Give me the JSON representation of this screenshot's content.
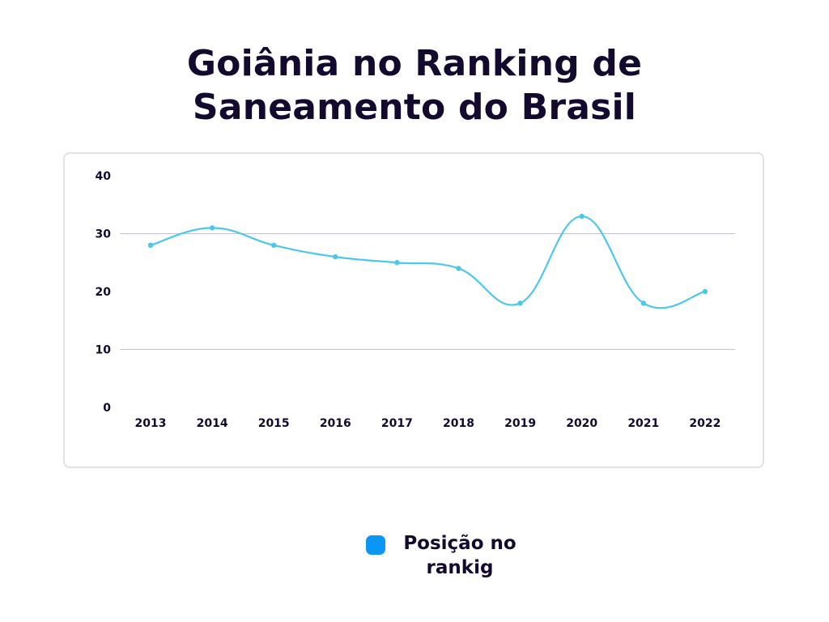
{
  "chart_data": {
    "type": "line",
    "title": "Goiânia no Ranking de Saneamento do Brasil",
    "title_lines": [
      "Goiânia no Ranking de",
      "Saneamento do Brasil"
    ],
    "xlabel": "",
    "ylabel": "",
    "categories": [
      "2013",
      "2014",
      "2015",
      "2016",
      "2017",
      "2018",
      "2019",
      "2020",
      "2021",
      "2022"
    ],
    "series": [
      {
        "name": "Posição no rankig",
        "values": [
          28,
          31,
          28,
          26,
          25,
          24,
          18,
          33,
          18,
          20
        ],
        "color": "#4cc8e8"
      }
    ],
    "yticks": [
      "0",
      "10",
      "20",
      "30",
      "40"
    ],
    "ylim": [
      0,
      40
    ],
    "grid": true,
    "legend_position": "bottom",
    "legend_color": "#0a96f5",
    "legend_lines": [
      "Posição no",
      "rankig"
    ]
  }
}
